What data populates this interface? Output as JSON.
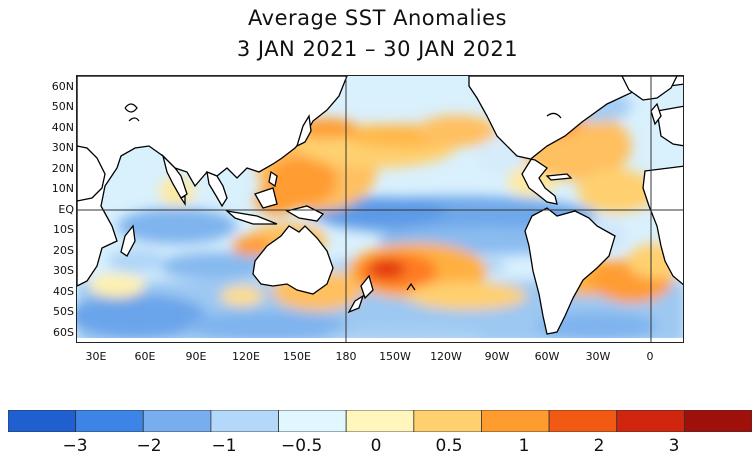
{
  "title": {
    "line1": "Average SST Anomalies",
    "line2": "3 JAN 2021 – 30 JAN 2021"
  },
  "map": {
    "lat_labels": [
      "60N",
      "50N",
      "40N",
      "30N",
      "20N",
      "10N",
      "EQ",
      "10S",
      "20S",
      "30S",
      "40S",
      "50S",
      "60S"
    ],
    "lon_labels": [
      "30E",
      "60E",
      "90E",
      "120E",
      "150E",
      "180",
      "150W",
      "120W",
      "90W",
      "60W",
      "30W",
      "0"
    ],
    "land_color": "#ffffff",
    "coastline_color": "#000000",
    "gridlines": [
      "equator",
      "dateline",
      "prime meridian"
    ]
  },
  "colorbar": {
    "colors": [
      "#1f5fd0",
      "#3c84e6",
      "#78aef0",
      "#b4d8fa",
      "#e1f7ff",
      "#fff6bd",
      "#ffd070",
      "#ff9c30",
      "#f25a14",
      "#d22510",
      "#a0100a"
    ],
    "labels": [
      "−3",
      "−2",
      "−1",
      "−0.5",
      "0",
      "0.5",
      "1",
      "2",
      "3"
    ]
  }
}
